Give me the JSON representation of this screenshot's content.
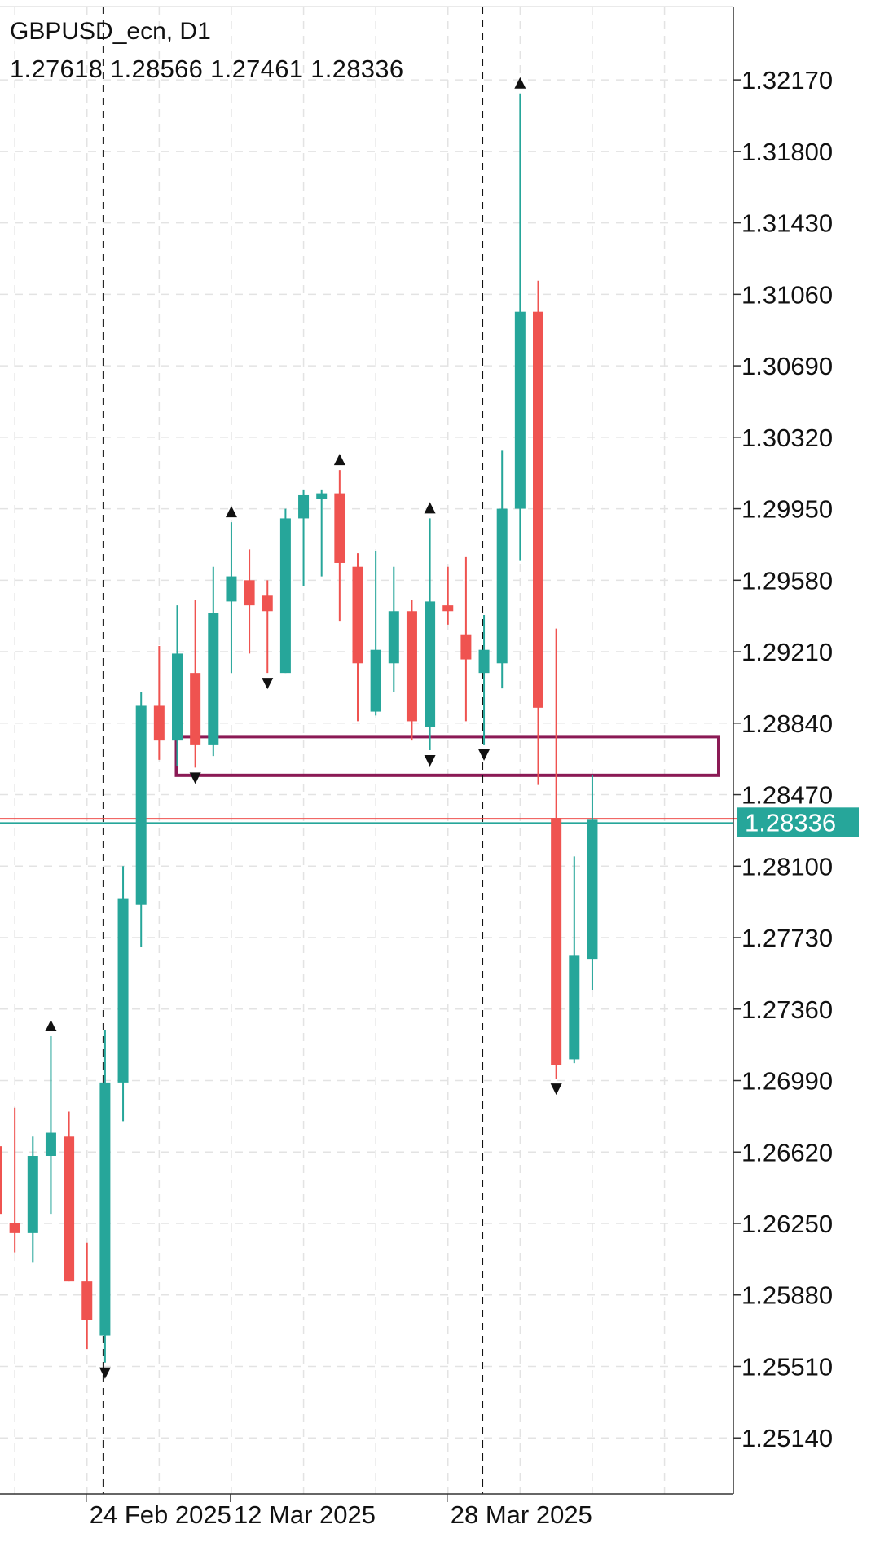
{
  "header": {
    "symbol_timeframe": "GBPUSD_ecn, D1",
    "ohlc_text": "1.27618 1.28566 1.27461 1.28336"
  },
  "colors": {
    "bull": "#26a69a",
    "bear": "#ef5350",
    "zone": "#8b1a55",
    "grid": "#e3e3e3",
    "axis": "#333333",
    "price_label_bg": "#26a69a",
    "ask_line": "#ef5350"
  },
  "chart_data": {
    "type": "candlestick",
    "symbol": "GBPUSD_ecn",
    "timeframe": "D1",
    "ylim": [
      1.2485,
      1.3255
    ],
    "y_ticks": [
      "1.32170",
      "1.31800",
      "1.31430",
      "1.31060",
      "1.30690",
      "1.30320",
      "1.29950",
      "1.29580",
      "1.29210",
      "1.28840",
      "1.28470",
      "1.28100",
      "1.27730",
      "1.27360",
      "1.26990",
      "1.26620",
      "1.26250",
      "1.25880",
      "1.25510",
      "1.25140"
    ],
    "x_labels": [
      {
        "index": 5.0,
        "label": "24 Feb 2025"
      },
      {
        "index": 13.0,
        "label": "12 Mar 2025"
      },
      {
        "index": 25.0,
        "label": "28 Mar 2025"
      }
    ],
    "grid": true,
    "candles": [
      {
        "o": 1.2665,
        "h": 1.2665,
        "l": 1.263,
        "c": 1.263
      },
      {
        "o": 1.2625,
        "h": 1.2685,
        "l": 1.261,
        "c": 1.262
      },
      {
        "o": 1.262,
        "h": 1.267,
        "l": 1.2605,
        "c": 1.266
      },
      {
        "o": 1.266,
        "h": 1.2722,
        "l": 1.263,
        "c": 1.2672
      },
      {
        "o": 1.267,
        "h": 1.2683,
        "l": 1.2595,
        "c": 1.2595
      },
      {
        "o": 1.2595,
        "h": 1.2615,
        "l": 1.256,
        "c": 1.2575
      },
      {
        "o": 1.2567,
        "h": 1.2725,
        "l": 1.2553,
        "c": 1.2698
      },
      {
        "o": 1.2698,
        "h": 1.281,
        "l": 1.2678,
        "c": 1.2793
      },
      {
        "o": 1.279,
        "h": 1.29,
        "l": 1.2768,
        "c": 1.2893
      },
      {
        "o": 1.2893,
        "h": 1.2924,
        "l": 1.2865,
        "c": 1.2875
      },
      {
        "o": 1.2875,
        "h": 1.2945,
        "l": 1.2862,
        "c": 1.292
      },
      {
        "o": 1.291,
        "h": 1.2948,
        "l": 1.2861,
        "c": 1.2873
      },
      {
        "o": 1.2873,
        "h": 1.2965,
        "l": 1.2867,
        "c": 1.2941
      },
      {
        "o": 1.2947,
        "h": 1.2988,
        "l": 1.291,
        "c": 1.296
      },
      {
        "o": 1.2958,
        "h": 1.2974,
        "l": 1.292,
        "c": 1.2945
      },
      {
        "o": 1.295,
        "h": 1.2958,
        "l": 1.291,
        "c": 1.2942
      },
      {
        "o": 1.291,
        "h": 1.2995,
        "l": 1.291,
        "c": 1.299
      },
      {
        "o": 1.299,
        "h": 1.3005,
        "l": 1.2955,
        "c": 1.3002
      },
      {
        "o": 1.3,
        "h": 1.3005,
        "l": 1.296,
        "c": 1.3003
      },
      {
        "o": 1.3003,
        "h": 1.3015,
        "l": 1.2937,
        "c": 1.2967
      },
      {
        "o": 1.2965,
        "h": 1.2972,
        "l": 1.2885,
        "c": 1.2915
      },
      {
        "o": 1.289,
        "h": 1.2973,
        "l": 1.2888,
        "c": 1.2922
      },
      {
        "o": 1.2915,
        "h": 1.2965,
        "l": 1.29,
        "c": 1.2942
      },
      {
        "o": 1.2942,
        "h": 1.2948,
        "l": 1.2875,
        "c": 1.2885
      },
      {
        "o": 1.2882,
        "h": 1.299,
        "l": 1.287,
        "c": 1.2947
      },
      {
        "o": 1.2945,
        "h": 1.2965,
        "l": 1.2935,
        "c": 1.2942
      },
      {
        "o": 1.293,
        "h": 1.297,
        "l": 1.2885,
        "c": 1.2917
      },
      {
        "o": 1.291,
        "h": 1.294,
        "l": 1.2873,
        "c": 1.2922
      },
      {
        "o": 1.2915,
        "h": 1.3025,
        "l": 1.2902,
        "c": 1.2995
      },
      {
        "o": 1.2995,
        "h": 1.321,
        "l": 1.2968,
        "c": 1.3097
      },
      {
        "o": 1.3097,
        "h": 1.3113,
        "l": 1.2852,
        "c": 1.2892
      },
      {
        "o": 1.2835,
        "h": 1.2933,
        "l": 1.27,
        "c": 1.2707
      },
      {
        "o": 1.271,
        "h": 1.2815,
        "l": 1.2708,
        "c": 1.2764
      },
      {
        "o": 1.2762,
        "h": 1.2857,
        "l": 1.2746,
        "c": 1.2834
      }
    ],
    "fractal_markers": [
      {
        "index": 3,
        "dir": "up",
        "price": 1.2722
      },
      {
        "index": 6,
        "dir": "down",
        "price": 1.2553
      },
      {
        "index": 11,
        "dir": "down",
        "price": 1.2861
      },
      {
        "index": 13,
        "dir": "up",
        "price": 1.2988
      },
      {
        "index": 15,
        "dir": "down",
        "price": 1.291
      },
      {
        "index": 19,
        "dir": "up",
        "price": 1.3015
      },
      {
        "index": 24,
        "dir": "up",
        "price": 1.299
      },
      {
        "index": 24,
        "dir": "down",
        "price": 1.287
      },
      {
        "index": 27,
        "dir": "down",
        "price": 1.2873
      },
      {
        "index": 29,
        "dir": "up",
        "price": 1.321
      },
      {
        "index": 31,
        "dir": "down",
        "price": 1.27
      }
    ],
    "zone": {
      "start_index": 10,
      "end_index": 40,
      "top": 1.2877,
      "bottom": 1.2857
    },
    "vlines_dashed": [
      6,
      27
    ],
    "current_price": "1.28336",
    "current_price_value": 1.28336,
    "ask_price_value": 1.28345
  }
}
